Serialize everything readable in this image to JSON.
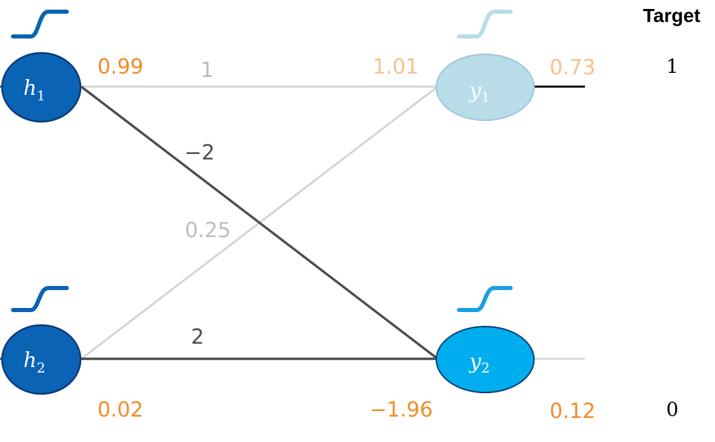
{
  "header": {
    "target_title": "Target"
  },
  "nodes": {
    "h1": {
      "label": "h",
      "sub": "1",
      "fill": "#0a63b4",
      "stroke": "#0a3a78"
    },
    "h2": {
      "label": "h",
      "sub": "2",
      "fill": "#0a63b4",
      "stroke": "#0a3a78"
    },
    "y1": {
      "label": "y",
      "sub": "1",
      "fill": "#b9dce9",
      "stroke": "#9ec6d8"
    },
    "y2": {
      "label": "y",
      "sub": "2",
      "fill": "#00adee",
      "stroke": "#0a3a78"
    }
  },
  "weights": {
    "h1_y1": "1",
    "h1_y2": "−2",
    "h2_y1": "0.25",
    "h2_y2": "2"
  },
  "values": {
    "h1_output": "0.99",
    "h2_output": "0.02",
    "y1_input": "1.01",
    "y1_output": "0.73",
    "y2_input": "−1.96",
    "y2_output": "0.12"
  },
  "targets": {
    "y1": "1",
    "y2": "0"
  },
  "colors": {
    "orange": "#f28c28",
    "orange_faded": "#f7c18c",
    "dark_line": "#4d4d4d",
    "light_line": "#d4d4d4",
    "gray_text": "#bdbdbd",
    "sigmoid_dark": "#0a63b4",
    "sigmoid_bright": "#1aa0e0",
    "sigmoid_faded": "#b9dce9"
  },
  "icons": {
    "activation": "sigmoid-icon"
  }
}
